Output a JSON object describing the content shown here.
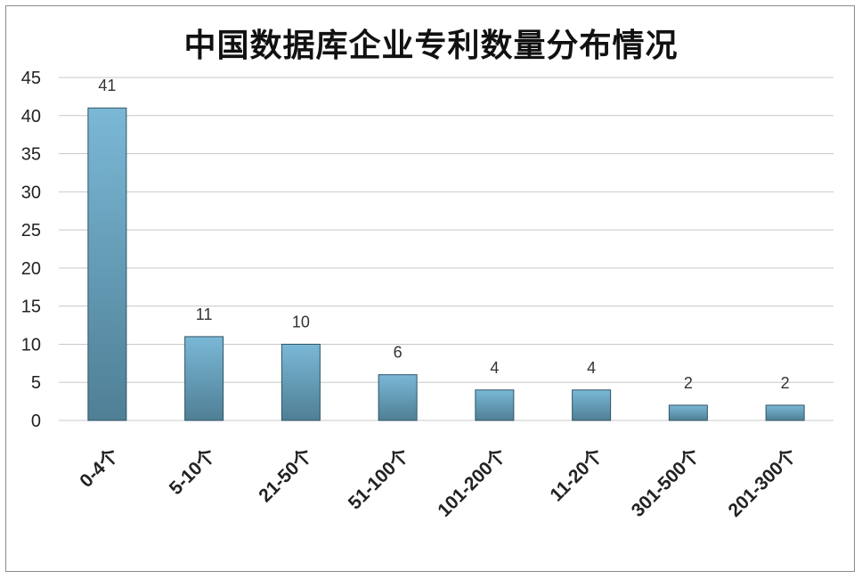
{
  "chart_data": {
    "type": "bar",
    "title": "中国数据库企业专利数量分布情况",
    "categories": [
      "0-4个",
      "5-10个",
      "21-50个",
      "51-100个",
      "101-200个",
      "11-20个",
      "301-500个",
      "201-300个"
    ],
    "values": [
      41,
      11,
      10,
      6,
      4,
      4,
      2,
      2
    ],
    "ylim": [
      0,
      45
    ],
    "yticks": [
      0,
      5,
      10,
      15,
      20,
      25,
      30,
      35,
      40,
      45
    ],
    "xlabel": "",
    "ylabel": "",
    "grid": true,
    "legend": "none",
    "colors": {
      "bar_top": "#7ab8d6",
      "bar_bottom": "#4f7f95",
      "bar_edge": "#2f5466",
      "grid": "#c8c8c8"
    }
  }
}
